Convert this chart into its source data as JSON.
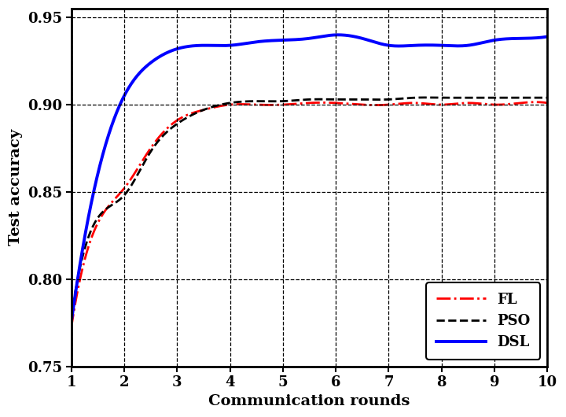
{
  "title": "",
  "xlabel": "Communication rounds",
  "ylabel": "Test accuracy",
  "xlim": [
    1,
    10
  ],
  "ylim": [
    0.75,
    0.955
  ],
  "xticks": [
    1,
    2,
    3,
    4,
    5,
    6,
    7,
    8,
    9,
    10
  ],
  "yticks": [
    0.75,
    0.8,
    0.85,
    0.9,
    0.95
  ],
  "FL_x": [
    1.0,
    1.5,
    2.0,
    2.5,
    3.0,
    3.5,
    4.0,
    4.5,
    5.0,
    5.5,
    6.0,
    6.5,
    7.0,
    7.5,
    8.0,
    8.5,
    9.0,
    9.5,
    10.0
  ],
  "FL_y": [
    0.772,
    0.832,
    0.852,
    0.875,
    0.891,
    0.897,
    0.9,
    0.9,
    0.9,
    0.901,
    0.901,
    0.9,
    0.9,
    0.901,
    0.9,
    0.901,
    0.9,
    0.901,
    0.901
  ],
  "PSO_x": [
    1.0,
    1.5,
    2.0,
    2.5,
    3.0,
    3.5,
    4.0,
    4.5,
    5.0,
    5.5,
    6.0,
    6.5,
    7.0,
    7.5,
    8.0,
    8.5,
    9.0,
    9.5,
    10.0
  ],
  "PSO_y": [
    0.778,
    0.835,
    0.848,
    0.873,
    0.889,
    0.897,
    0.901,
    0.902,
    0.902,
    0.903,
    0.903,
    0.903,
    0.903,
    0.904,
    0.904,
    0.904,
    0.904,
    0.904,
    0.904
  ],
  "DSL_x": [
    1.0,
    1.5,
    2.0,
    2.5,
    3.0,
    3.5,
    4.0,
    4.5,
    5.0,
    5.5,
    6.0,
    6.5,
    7.0,
    7.5,
    8.0,
    8.5,
    9.0,
    9.5,
    10.0
  ],
  "DSL_y": [
    0.775,
    0.86,
    0.905,
    0.924,
    0.932,
    0.934,
    0.934,
    0.936,
    0.937,
    0.938,
    0.94,
    0.938,
    0.934,
    0.934,
    0.934,
    0.934,
    0.937,
    0.938,
    0.939
  ],
  "FL_color": "#ff0000",
  "PSO_color": "#000000",
  "DSL_color": "#0000ff",
  "background_color": "#ffffff",
  "legend_loc": "lower right",
  "figsize": [
    7.2,
    5.3
  ],
  "dpi": 100
}
